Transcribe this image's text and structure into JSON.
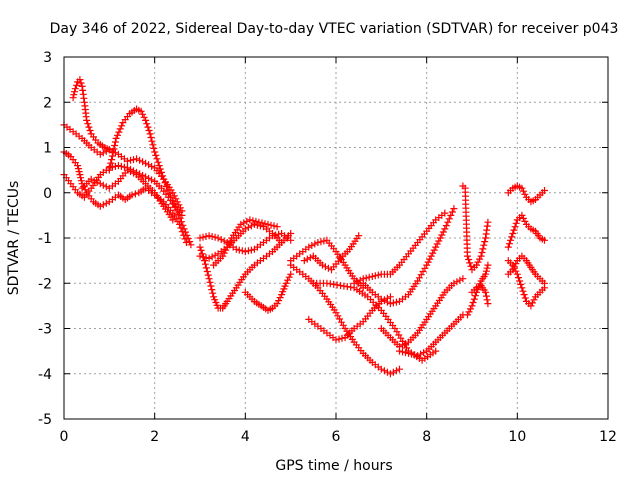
{
  "chart_data": {
    "type": "scatter",
    "title": "Day 346 of 2022, Sidereal Day-to-day VTEC variation (SDTVAR) for receiver p043",
    "xlabel": "GPS time / hours",
    "ylabel": "SDTVAR / TECUs",
    "xlim": [
      0,
      12
    ],
    "ylim": [
      -5,
      3
    ],
    "xticks": [
      0,
      2,
      4,
      6,
      8,
      10,
      12
    ],
    "yticks": [
      -5,
      -4,
      -3,
      -2,
      -1,
      0,
      1,
      2,
      3
    ],
    "grid": true,
    "marker": "+",
    "color": "#ff0000",
    "series": [
      {
        "name": "track-1",
        "x": [
          0.0,
          0.15,
          0.3,
          0.35,
          0.4,
          0.5,
          0.65,
          0.8,
          1.0,
          1.2,
          1.35,
          1.5,
          1.65,
          1.8,
          2.0,
          2.2,
          2.4,
          2.55,
          2.7
        ],
        "y": [
          0.9,
          0.8,
          0.6,
          0.4,
          0.2,
          0.0,
          -0.2,
          -0.3,
          -0.2,
          -0.05,
          -0.15,
          -0.05,
          0.0,
          0.1,
          -0.05,
          -0.2,
          -0.45,
          -0.7,
          -1.1
        ]
      },
      {
        "name": "track-2",
        "x": [
          0.0,
          0.15,
          0.3,
          0.45,
          0.6,
          0.8,
          1.0,
          1.2,
          1.4,
          1.6,
          1.8,
          2.0,
          2.15,
          2.3,
          2.45,
          2.6
        ],
        "y": [
          0.4,
          0.2,
          0.0,
          -0.1,
          0.1,
          0.4,
          0.55,
          0.6,
          0.55,
          0.45,
          0.35,
          0.25,
          0.1,
          -0.1,
          -0.3,
          -0.5
        ]
      },
      {
        "name": "track-3",
        "x": [
          0.2,
          0.25,
          0.3,
          0.35,
          0.4,
          0.45,
          0.5,
          0.6,
          0.75,
          0.9,
          1.0
        ],
        "y": [
          2.1,
          2.3,
          2.45,
          2.5,
          2.35,
          2.0,
          1.6,
          1.3,
          1.1,
          1.0,
          0.95
        ]
      },
      {
        "name": "track-4",
        "x": [
          1.0,
          1.15,
          1.3,
          1.45,
          1.6,
          1.7,
          1.8,
          1.9,
          2.0,
          2.1,
          2.2,
          2.35,
          2.5,
          2.65,
          2.8
        ],
        "y": [
          0.5,
          1.2,
          1.55,
          1.75,
          1.85,
          1.8,
          1.6,
          1.3,
          0.9,
          0.6,
          0.3,
          -0.1,
          -0.4,
          -0.8,
          -1.15
        ]
      },
      {
        "name": "track-5",
        "x": [
          0.0,
          0.2,
          0.4,
          0.6,
          0.8,
          1.0,
          1.2,
          1.4,
          1.6,
          1.8,
          2.0,
          2.2,
          2.4,
          2.6
        ],
        "y": [
          1.5,
          1.35,
          1.2,
          1.0,
          0.85,
          0.95,
          0.85,
          0.7,
          0.75,
          0.65,
          0.55,
          0.3,
          0.0,
          -0.4
        ]
      },
      {
        "name": "track-6",
        "x": [
          0.4,
          0.6,
          0.8,
          1.0,
          1.2,
          1.4,
          1.6,
          1.8,
          2.0,
          2.2,
          2.4
        ],
        "y": [
          0.1,
          0.3,
          0.2,
          0.1,
          0.25,
          0.5,
          0.4,
          0.2,
          0.0,
          -0.3,
          -0.6
        ]
      },
      {
        "name": "track-7",
        "x": [
          3.0,
          3.1,
          3.2,
          3.3,
          3.4,
          3.5,
          3.6,
          3.8,
          4.0,
          4.2,
          4.4,
          4.6,
          4.8,
          5.0
        ],
        "y": [
          -1.2,
          -1.5,
          -1.9,
          -2.3,
          -2.55,
          -2.55,
          -2.4,
          -2.1,
          -1.8,
          -1.6,
          -1.45,
          -1.3,
          -1.1,
          -0.9
        ]
      },
      {
        "name": "track-8",
        "x": [
          3.0,
          3.2,
          3.4,
          3.6,
          3.8,
          4.0,
          4.2,
          4.4,
          4.6,
          4.8
        ],
        "y": [
          -1.4,
          -1.45,
          -1.35,
          -1.2,
          -1.0,
          -0.8,
          -0.7,
          -0.75,
          -0.9,
          -1.1
        ]
      },
      {
        "name": "track-9",
        "x": [
          3.3,
          3.5,
          3.7,
          3.9,
          4.1,
          4.3,
          4.5,
          4.7
        ],
        "y": [
          -1.6,
          -1.4,
          -1.0,
          -0.7,
          -0.6,
          -0.65,
          -0.7,
          -0.75
        ]
      },
      {
        "name": "track-10",
        "x": [
          3.0,
          3.2,
          3.4,
          3.6,
          3.8,
          4.0,
          4.2,
          4.4,
          4.6,
          4.8,
          5.0
        ],
        "y": [
          -1.0,
          -0.95,
          -1.0,
          -1.1,
          -1.25,
          -1.3,
          -1.25,
          -1.1,
          -0.95,
          -0.9,
          -1.05
        ]
      },
      {
        "name": "track-11",
        "x": [
          4.0,
          4.1,
          4.2,
          4.35,
          4.5,
          4.6,
          4.7,
          4.8,
          4.9,
          5.0
        ],
        "y": [
          -2.2,
          -2.3,
          -2.4,
          -2.5,
          -2.6,
          -2.55,
          -2.45,
          -2.25,
          -2.0,
          -1.8
        ]
      },
      {
        "name": "track-12",
        "x": [
          5.0,
          5.2,
          5.4,
          5.6,
          5.8,
          6.0,
          6.2,
          6.4,
          6.6
        ],
        "y": [
          -1.5,
          -1.35,
          -1.2,
          -1.1,
          -1.05,
          -1.3,
          -1.6,
          -1.9,
          -2.1
        ]
      },
      {
        "name": "track-13",
        "x": [
          5.0,
          5.2,
          5.4,
          5.6,
          5.8,
          6.0,
          6.2,
          6.4,
          6.6,
          6.8,
          7.0,
          7.2,
          7.4
        ],
        "y": [
          -1.6,
          -1.75,
          -1.9,
          -2.1,
          -2.35,
          -2.65,
          -3.0,
          -3.3,
          -3.55,
          -3.75,
          -3.9,
          -4.0,
          -3.9
        ]
      },
      {
        "name": "track-14",
        "x": [
          5.4,
          5.6,
          5.8,
          6.0,
          6.2,
          6.4,
          6.6,
          6.8,
          7.0,
          7.2
        ],
        "y": [
          -2.8,
          -2.95,
          -3.1,
          -3.25,
          -3.2,
          -3.0,
          -2.85,
          -2.6,
          -2.4,
          -2.3
        ]
      },
      {
        "name": "track-15",
        "x": [
          5.3,
          5.5,
          5.7,
          5.9,
          6.1,
          6.3,
          6.5
        ],
        "y": [
          -1.5,
          -1.4,
          -1.6,
          -1.7,
          -1.45,
          -1.25,
          -0.95
        ]
      },
      {
        "name": "track-16",
        "x": [
          5.5,
          5.8,
          6.1,
          6.4,
          6.7,
          7.0,
          7.3,
          7.6,
          7.9,
          8.2
        ],
        "y": [
          -2.0,
          -2.0,
          -2.05,
          -2.1,
          -2.3,
          -2.6,
          -3.0,
          -3.5,
          -3.7,
          -3.5
        ]
      },
      {
        "name": "track-17",
        "x": [
          6.4,
          6.6,
          6.8,
          7.0,
          7.2,
          7.4,
          7.6,
          7.8,
          8.0,
          8.2,
          8.4
        ],
        "y": [
          -2.0,
          -1.9,
          -1.85,
          -1.8,
          -1.8,
          -1.6,
          -1.35,
          -1.1,
          -0.85,
          -0.6,
          -0.45
        ]
      },
      {
        "name": "track-18",
        "x": [
          6.6,
          6.8,
          7.0,
          7.2,
          7.4,
          7.6,
          7.8,
          8.0,
          8.2,
          8.4,
          8.6
        ],
        "y": [
          -2.0,
          -2.2,
          -2.35,
          -2.45,
          -2.4,
          -2.25,
          -1.95,
          -1.6,
          -1.2,
          -0.8,
          -0.35
        ]
      },
      {
        "name": "track-19",
        "x": [
          7.0,
          7.2,
          7.4,
          7.6,
          7.8,
          8.0,
          8.2,
          8.4,
          8.6,
          8.8
        ],
        "y": [
          -3.0,
          -3.2,
          -3.4,
          -3.3,
          -3.1,
          -2.8,
          -2.5,
          -2.2,
          -2.0,
          -1.9
        ]
      },
      {
        "name": "track-20",
        "x": [
          7.4,
          7.6,
          7.8,
          8.0,
          8.2,
          8.4,
          8.6,
          8.8
        ],
        "y": [
          -3.5,
          -3.55,
          -3.6,
          -3.5,
          -3.3,
          -3.1,
          -2.9,
          -2.7
        ]
      },
      {
        "name": "track-21",
        "x": [
          8.8,
          8.85,
          8.9,
          9.0,
          9.1,
          9.2,
          9.3,
          9.35
        ],
        "y": [
          0.15,
          0.1,
          -1.4,
          -1.7,
          -1.6,
          -1.4,
          -1.0,
          -0.65
        ]
      },
      {
        "name": "track-22",
        "x": [
          8.9,
          9.0,
          9.1,
          9.2,
          9.3,
          9.35
        ],
        "y": [
          -2.7,
          -2.5,
          -2.2,
          -1.95,
          -1.8,
          -1.6
        ]
      },
      {
        "name": "track-23",
        "x": [
          9.0,
          9.1,
          9.2,
          9.3,
          9.35
        ],
        "y": [
          -2.2,
          -2.1,
          -2.05,
          -2.2,
          -2.45
        ]
      },
      {
        "name": "track-24",
        "x": [
          9.8,
          9.9,
          10.0,
          10.1,
          10.2,
          10.3,
          10.4,
          10.5,
          10.6
        ],
        "y": [
          -1.5,
          -1.6,
          -1.8,
          -2.1,
          -2.4,
          -2.5,
          -2.3,
          -2.2,
          -2.1
        ]
      },
      {
        "name": "track-25",
        "x": [
          9.8,
          9.9,
          10.0,
          10.1,
          10.2,
          10.3,
          10.4,
          10.5,
          10.6
        ],
        "y": [
          0.0,
          0.1,
          0.15,
          0.1,
          -0.1,
          -0.2,
          -0.15,
          -0.05,
          0.05
        ]
      },
      {
        "name": "track-26",
        "x": [
          9.8,
          9.9,
          10.0,
          10.1,
          10.2,
          10.3,
          10.4,
          10.5,
          10.6
        ],
        "y": [
          -1.2,
          -0.9,
          -0.6,
          -0.5,
          -0.7,
          -0.8,
          -0.85,
          -1.0,
          -1.05
        ]
      },
      {
        "name": "track-27",
        "x": [
          9.8,
          9.9,
          10.0,
          10.1,
          10.2,
          10.3,
          10.4,
          10.5,
          10.6
        ],
        "y": [
          -1.8,
          -1.7,
          -1.5,
          -1.4,
          -1.5,
          -1.65,
          -1.8,
          -1.9,
          -2.0
        ]
      }
    ]
  }
}
